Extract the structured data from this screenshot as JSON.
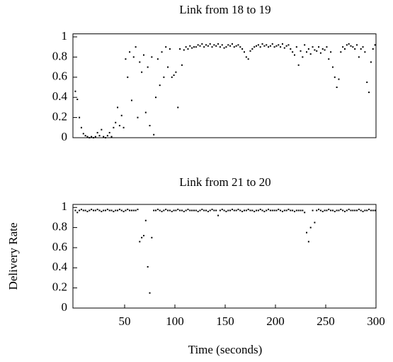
{
  "chart_data": [
    {
      "type": "scatter",
      "title": "Link from 18 to 19",
      "xlim": [
        0,
        300
      ],
      "ylim": [
        0,
        1.03
      ],
      "yticks": [
        0,
        0.2,
        0.4,
        0.6,
        0.8,
        1
      ],
      "series": [
        {
          "color": "#000000",
          "x": [
            1,
            3,
            5,
            7,
            9,
            11,
            13,
            15,
            17,
            19,
            21,
            23,
            25,
            27,
            29,
            31,
            33,
            35,
            37,
            39,
            41,
            43,
            45,
            47,
            49,
            51,
            53,
            55,
            57,
            59,
            61,
            63,
            65,
            67,
            69,
            71,
            73,
            75,
            77,
            79,
            81,
            83,
            85,
            87,
            89,
            91,
            93,
            95,
            97,
            99,
            101,
            103,
            105,
            107,
            109,
            111,
            113,
            115,
            117,
            119,
            121,
            123,
            125,
            127,
            129,
            131,
            133,
            135,
            137,
            139,
            141,
            143,
            145,
            147,
            149,
            151,
            153,
            155,
            157,
            159,
            161,
            163,
            165,
            167,
            169,
            171,
            173,
            175,
            177,
            179,
            181,
            183,
            185,
            187,
            189,
            191,
            193,
            195,
            197,
            199,
            201,
            203,
            205,
            207,
            209,
            211,
            213,
            215,
            217,
            219,
            221,
            223,
            225,
            227,
            229,
            231,
            233,
            235,
            237,
            239,
            241,
            243,
            245,
            247,
            249,
            251,
            253,
            255,
            257,
            259,
            261,
            263,
            265,
            267,
            269,
            271,
            273,
            275,
            277,
            279,
            281,
            283,
            285,
            287,
            289,
            291,
            293,
            295,
            297,
            299
          ],
          "values": [
            0.46,
            0.38,
            0.2,
            0.1,
            0.04,
            0.02,
            0.01,
            0.0,
            0.01,
            0.0,
            0.01,
            0.05,
            0.02,
            0.08,
            0.01,
            0.0,
            0.02,
            0.05,
            0.01,
            0.1,
            0.15,
            0.3,
            0.12,
            0.22,
            0.1,
            0.78,
            0.6,
            0.85,
            0.37,
            0.8,
            0.9,
            0.2,
            0.75,
            0.65,
            0.82,
            0.25,
            0.7,
            0.12,
            0.8,
            0.03,
            0.4,
            0.78,
            0.52,
            0.85,
            0.6,
            0.9,
            0.7,
            0.88,
            0.6,
            0.62,
            0.65,
            0.3,
            0.88,
            0.72,
            0.87,
            0.9,
            0.88,
            0.91,
            0.89,
            0.9,
            0.9,
            0.92,
            0.91,
            0.93,
            0.9,
            0.92,
            0.91,
            0.93,
            0.9,
            0.92,
            0.91,
            0.93,
            0.9,
            0.92,
            0.89,
            0.9,
            0.92,
            0.91,
            0.93,
            0.9,
            0.91,
            0.92,
            0.9,
            0.88,
            0.85,
            0.8,
            0.78,
            0.86,
            0.88,
            0.9,
            0.91,
            0.92,
            0.9,
            0.93,
            0.91,
            0.92,
            0.9,
            0.91,
            0.93,
            0.9,
            0.91,
            0.92,
            0.9,
            0.93,
            0.89,
            0.91,
            0.92,
            0.88,
            0.85,
            0.82,
            0.9,
            0.72,
            0.86,
            0.8,
            0.92,
            0.85,
            0.88,
            0.83,
            0.9,
            0.87,
            0.86,
            0.9,
            0.84,
            0.88,
            0.87,
            0.9,
            0.78,
            0.85,
            0.7,
            0.6,
            0.5,
            0.58,
            0.85,
            0.9,
            0.88,
            0.92,
            0.93,
            0.91,
            0.9,
            0.88,
            0.92,
            0.8,
            0.88,
            0.9,
            0.85,
            0.55,
            0.45,
            0.75,
            0.88,
            0.92
          ]
        }
      ]
    },
    {
      "type": "scatter",
      "title": "Link from 21 to 20",
      "x_label": "Time (seconds)",
      "y_label": "Delivery Rate",
      "xlim": [
        0,
        300
      ],
      "xticks": [
        50,
        100,
        150,
        200,
        250,
        300
      ],
      "ylim": [
        0,
        1.03
      ],
      "yticks": [
        0,
        0.2,
        0.4,
        0.6,
        0.8,
        1
      ],
      "series": [
        {
          "color": "#000000",
          "x": [
            1,
            3,
            5,
            7,
            9,
            11,
            13,
            15,
            17,
            19,
            21,
            23,
            25,
            27,
            29,
            31,
            33,
            35,
            37,
            39,
            41,
            43,
            45,
            47,
            49,
            51,
            53,
            55,
            57,
            59,
            61,
            63,
            65,
            67,
            69,
            71,
            73,
            75,
            77,
            79,
            81,
            83,
            85,
            87,
            89,
            91,
            93,
            95,
            97,
            99,
            101,
            103,
            105,
            107,
            109,
            111,
            113,
            115,
            117,
            119,
            121,
            123,
            125,
            127,
            129,
            131,
            133,
            135,
            137,
            139,
            141,
            143,
            145,
            147,
            149,
            151,
            153,
            155,
            157,
            159,
            161,
            163,
            165,
            167,
            169,
            171,
            173,
            175,
            177,
            179,
            181,
            183,
            185,
            187,
            189,
            191,
            193,
            195,
            197,
            199,
            201,
            203,
            205,
            207,
            209,
            211,
            213,
            215,
            217,
            219,
            221,
            223,
            225,
            227,
            229,
            231,
            233,
            235,
            237,
            239,
            241,
            243,
            245,
            247,
            249,
            251,
            253,
            255,
            257,
            259,
            261,
            263,
            265,
            267,
            269,
            271,
            273,
            275,
            277,
            279,
            281,
            283,
            285,
            287,
            289,
            291,
            293,
            295,
            297,
            299
          ],
          "values": [
            0.97,
            0.95,
            0.97,
            0.98,
            0.97,
            0.97,
            0.96,
            0.97,
            0.98,
            0.97,
            0.97,
            0.98,
            0.97,
            0.96,
            0.97,
            0.97,
            0.98,
            0.97,
            0.97,
            0.96,
            0.97,
            0.97,
            0.98,
            0.97,
            0.96,
            0.97,
            0.98,
            0.97,
            0.97,
            0.97,
            0.97,
            0.98,
            0.66,
            0.7,
            0.72,
            0.87,
            0.41,
            0.15,
            0.7,
            0.97,
            0.97,
            0.98,
            0.97,
            0.96,
            0.97,
            0.98,
            0.97,
            0.97,
            0.96,
            0.97,
            0.97,
            0.98,
            0.97,
            0.97,
            0.96,
            0.97,
            0.98,
            0.97,
            0.97,
            0.97,
            0.97,
            0.96,
            0.97,
            0.98,
            0.97,
            0.97,
            0.96,
            0.97,
            0.98,
            0.97,
            0.97,
            0.92,
            0.97,
            0.98,
            0.97,
            0.96,
            0.97,
            0.97,
            0.98,
            0.97,
            0.97,
            0.98,
            0.97,
            0.96,
            0.97,
            0.97,
            0.98,
            0.97,
            0.97,
            0.96,
            0.97,
            0.97,
            0.98,
            0.97,
            0.96,
            0.97,
            0.98,
            0.97,
            0.97,
            0.97,
            0.97,
            0.98,
            0.97,
            0.96,
            0.97,
            0.97,
            0.98,
            0.97,
            0.97,
            0.96,
            0.97,
            0.97,
            0.97,
            0.97,
            0.95,
            0.75,
            0.66,
            0.8,
            0.97,
            0.85,
            0.97,
            0.98,
            0.97,
            0.96,
            0.97,
            0.97,
            0.98,
            0.97,
            0.97,
            0.96,
            0.97,
            0.97,
            0.98,
            0.97,
            0.96,
            0.97,
            0.98,
            0.97,
            0.97,
            0.97,
            0.97,
            0.98,
            0.97,
            0.96,
            0.97,
            0.97,
            0.98,
            0.97,
            0.97,
            0.97
          ]
        }
      ]
    }
  ]
}
